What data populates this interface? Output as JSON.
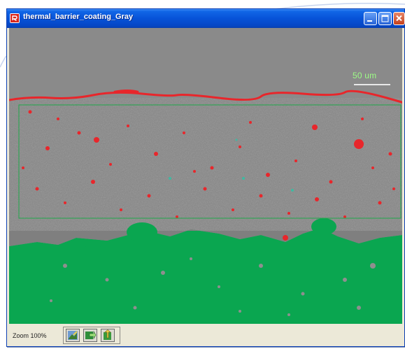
{
  "window": {
    "title": "thermal_barrier_coating_Gray",
    "icons": {
      "app": "app-logo-icon",
      "minimize": "minimize-icon",
      "maximize": "maximize-icon",
      "close": "close-icon"
    }
  },
  "image": {
    "scale_label": "50 um",
    "colors": {
      "background_gray": "#8c8c8c",
      "pore_red": "#e8262b",
      "bondcoat_green": "#0aa650",
      "roi_outline": "#1fa84a",
      "scale_text": "#9dfc86"
    }
  },
  "statusbar": {
    "zoom_text": "Zoom 100%",
    "tools": [
      {
        "name": "select-tool-icon"
      },
      {
        "name": "move-tool-icon"
      },
      {
        "name": "export-tool-icon"
      }
    ]
  }
}
